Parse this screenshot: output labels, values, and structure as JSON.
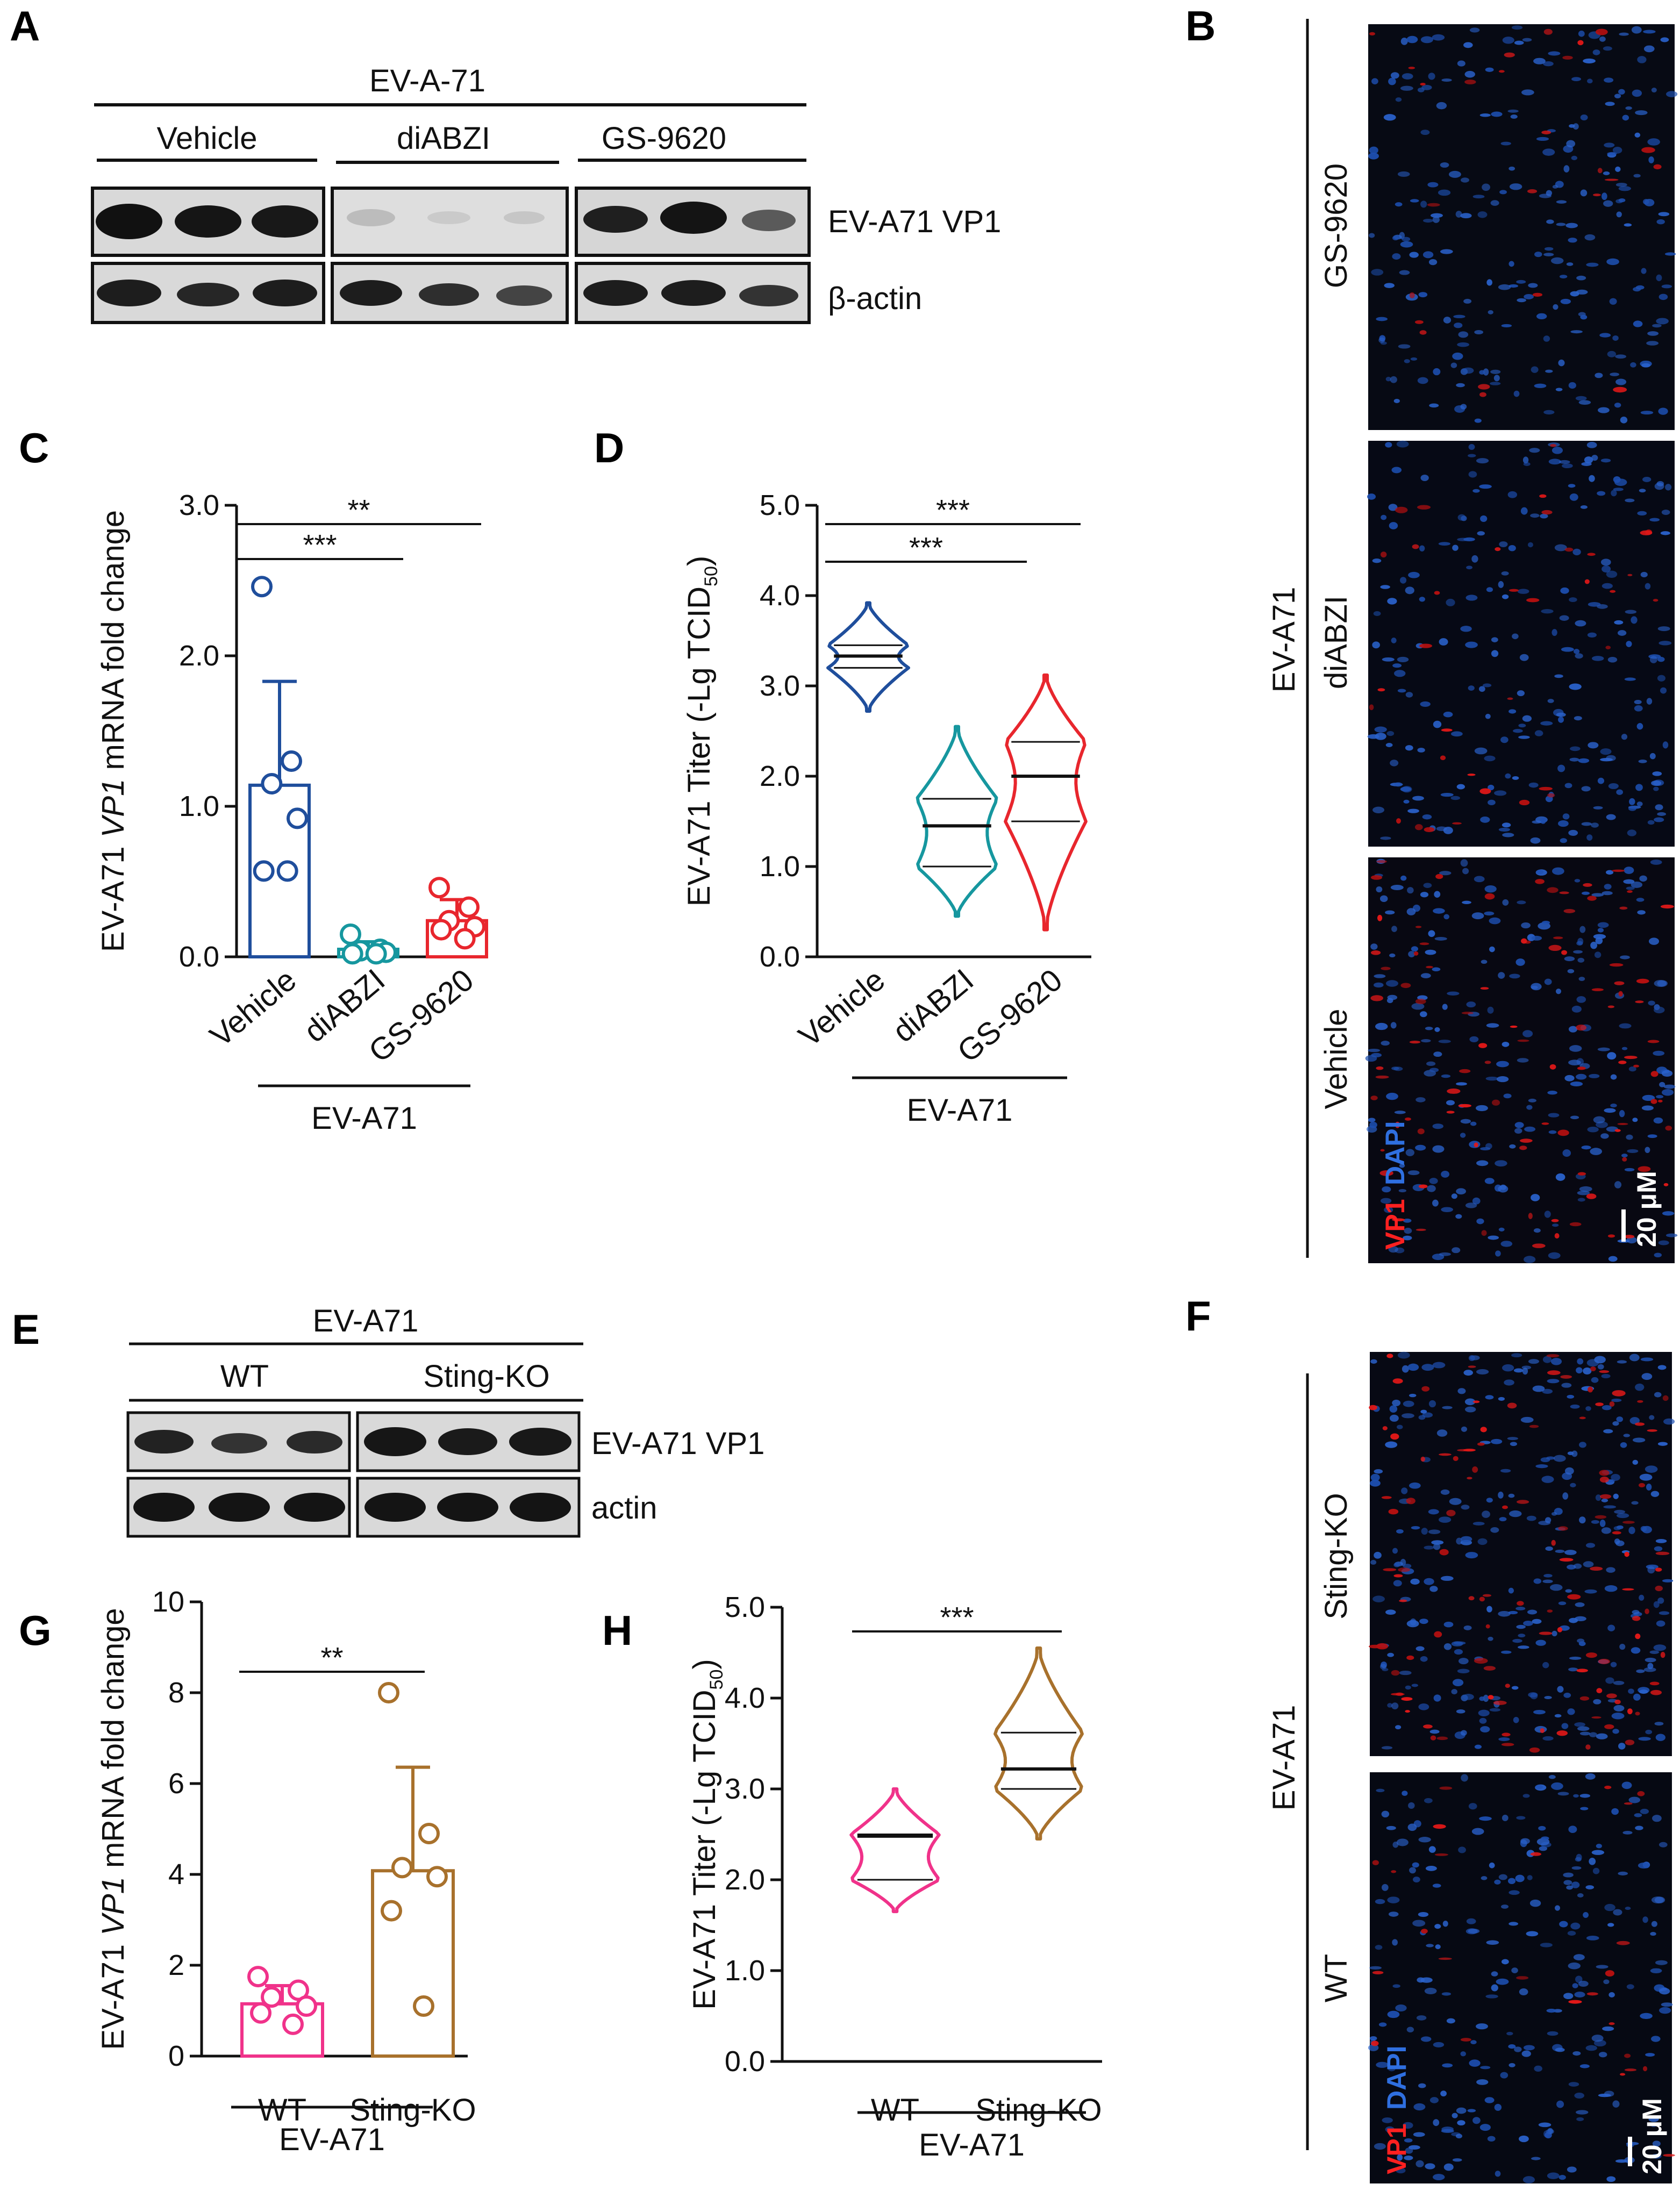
{
  "panels": {
    "A": {
      "letter": "A",
      "virus_header": "EV-A-71",
      "groups": [
        "Vehicle",
        "diABZI",
        "GS-9620"
      ],
      "rows": [
        "EV-A71 VP1",
        "β-actin"
      ]
    },
    "B": {
      "letter": "B",
      "virus_label": "EV-A71",
      "rows": [
        "GS-9620",
        "diABZI",
        "Vehicle"
      ],
      "stain_red": "VP1",
      "stain_blue": "DAPI",
      "scale": "20 μM"
    },
    "C": {
      "letter": "C"
    },
    "D": {
      "letter": "D"
    },
    "E": {
      "letter": "E",
      "virus_header": "EV-A71",
      "groups": [
        "WT",
        "Sting-KO"
      ],
      "rows": [
        "EV-A71 VP1",
        "actin"
      ]
    },
    "F": {
      "letter": "F",
      "virus_label": "EV-A71",
      "rows": [
        "Sting-KO",
        "WT"
      ],
      "stain_red": "VP1",
      "stain_blue": "DAPI",
      "scale": "20 μM"
    },
    "G": {
      "letter": "G"
    },
    "H": {
      "letter": "H"
    }
  },
  "chart_data": [
    {
      "panel": "C",
      "type": "bar",
      "ylabel": "EV-A71 VP1 mRNA fold change",
      "ylabel_parts": [
        "EV-A71 ",
        "VP1",
        " mRNA  fold change"
      ],
      "categories": [
        "Vehicle",
        "diABZI",
        "GS-9620"
      ],
      "group_label": "EV-A71",
      "ylim": [
        0,
        3
      ],
      "yticks": [
        "0.0",
        "1.0",
        "2.0",
        "3.0"
      ],
      "ytick_values": [
        0,
        1,
        2,
        3
      ],
      "colors": [
        "#1f4e9c",
        "#16979f",
        "#e8262d"
      ],
      "means": [
        1.14,
        0.05,
        0.24
      ],
      "sd": [
        0.69,
        0.05,
        0.14
      ],
      "points": [
        [
          2.46,
          1.3,
          1.15,
          0.92,
          0.57,
          0.57
        ],
        [
          0.15,
          0.05,
          0.04,
          0.03,
          0.02,
          0.02
        ],
        [
          0.46,
          0.33,
          0.24,
          0.2,
          0.18,
          0.12
        ]
      ],
      "significance": [
        {
          "from": 0,
          "to": 1,
          "label": "***"
        },
        {
          "from": 0,
          "to": 2,
          "label": "**"
        }
      ]
    },
    {
      "panel": "D",
      "type": "violin",
      "ylabel": "EV-A71 Titer  (-Lg TCID50)",
      "ylabel_parts": [
        "EV-A71 Titer  (-Lg TCID",
        "50",
        ")"
      ],
      "categories": [
        "Vehicle",
        "diABZI",
        "GS-9620"
      ],
      "group_label": "EV-A71",
      "ylim": [
        0,
        5
      ],
      "yticks": [
        "0.0",
        "1.0",
        "2.0",
        "3.0",
        "4.0",
        "5.0"
      ],
      "ytick_values": [
        0,
        1,
        2,
        3,
        4,
        5
      ],
      "colors": [
        "#1f4e9c",
        "#16979f",
        "#e8262d"
      ],
      "violins": [
        {
          "min": 2.72,
          "max": 3.92,
          "q1": 3.2,
          "median": 3.33,
          "q3": 3.45
        },
        {
          "min": 0.45,
          "max": 2.55,
          "q1": 1.0,
          "median": 1.45,
          "q3": 1.75
        },
        {
          "min": 0.3,
          "max": 3.12,
          "q1": 1.5,
          "median": 2.0,
          "q3": 2.38
        }
      ],
      "significance": [
        {
          "from": 0,
          "to": 2,
          "label": "***"
        },
        {
          "from": 0,
          "to": 1,
          "label": "***"
        }
      ]
    },
    {
      "panel": "G",
      "type": "bar",
      "ylabel": "EV-A71 VP1 mRNA fold change",
      "ylabel_parts": [
        "EV-A71 ",
        "VP1",
        " mRNA  fold change"
      ],
      "categories": [
        "WT",
        "Sting-KO"
      ],
      "group_label": "EV-A71",
      "ylim": [
        0,
        10
      ],
      "yticks": [
        "0",
        "2",
        "4",
        "6",
        "8",
        "10"
      ],
      "ytick_values": [
        0,
        2,
        4,
        6,
        8,
        10
      ],
      "colors": [
        "#f0328a",
        "#a8712c"
      ],
      "means": [
        1.15,
        4.08
      ],
      "sd": [
        0.4,
        2.28
      ],
      "points": [
        [
          1.75,
          1.45,
          1.3,
          1.1,
          0.95,
          0.7
        ],
        [
          8.0,
          4.9,
          4.15,
          3.95,
          3.2,
          1.1
        ]
      ],
      "significance": [
        {
          "from": 0,
          "to": 1,
          "label": "**"
        }
      ]
    },
    {
      "panel": "H",
      "type": "violin",
      "ylabel": "EV-A71 Titer  (-Lg TCID50)",
      "ylabel_parts": [
        "EV-A71 Titer  (-Lg TCID",
        "50",
        ")"
      ],
      "categories": [
        "WT",
        "Sting-KO"
      ],
      "group_label": "EV-A71",
      "ylim": [
        0,
        5
      ],
      "yticks": [
        "0.0",
        "1.0",
        "2.0",
        "3.0",
        "4.0",
        "5.0"
      ],
      "ytick_values": [
        0,
        1,
        2,
        3,
        4,
        5
      ],
      "colors": [
        "#f0328a",
        "#a8712c"
      ],
      "violins": [
        {
          "min": 1.65,
          "max": 3.0,
          "q1": 2.0,
          "median": 2.48,
          "q3": 2.5
        },
        {
          "min": 2.45,
          "max": 4.55,
          "q1": 3.0,
          "median": 3.22,
          "q3": 3.62
        }
      ],
      "significance": [
        {
          "from": 0,
          "to": 1,
          "label": "***"
        }
      ]
    }
  ]
}
